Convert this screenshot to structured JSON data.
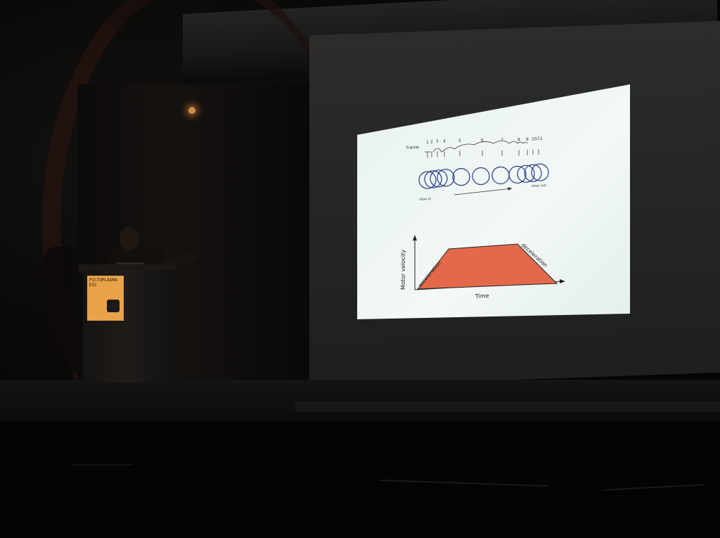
{
  "scene": {
    "description_colors": {
      "slide_bg": "#eef6f3",
      "trapezoid_fill": "#e3694a",
      "ball_stroke": "#2a3a8a",
      "podium_sign": "#e8a24a"
    }
  },
  "podium_sign": {
    "line1": "PICTOPLASMA",
    "line2": "DIC"
  },
  "slide": {
    "frame_label": "frame",
    "frame_numbers": [
      "1",
      "2",
      "3",
      "4",
      "5",
      "6",
      "7",
      "8",
      "9",
      "10",
      "11"
    ],
    "slow_in": "slow in",
    "slow_out": "slow out",
    "chart": {
      "ylabel": "Motor velocity",
      "xlabel": "Time",
      "left_label": "acceleration",
      "right_label": "deceleration"
    }
  }
}
